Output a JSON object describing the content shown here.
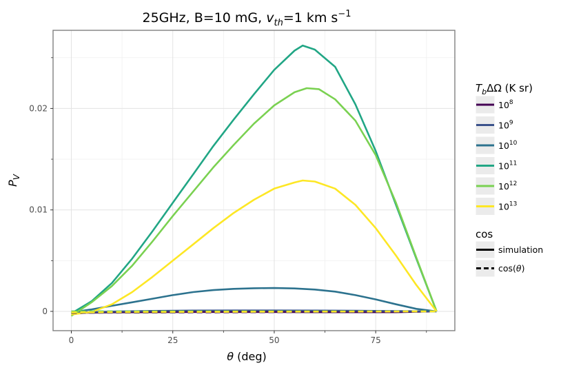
{
  "chart_data": {
    "type": "line",
    "title": "25GHz, B=10 mG, v_th=1 km s^-1",
    "title_parts": {
      "prefix": "25GHz, B=10 mG, ",
      "var": "v",
      "var_sub": "th",
      "mid": "=1 km s",
      "sup": "−1"
    },
    "xlabel": {
      "sym": "θ",
      "rest": " (deg)"
    },
    "ylabel": {
      "sym": "P",
      "sub": "V"
    },
    "xlim": [
      -4.5,
      94.5
    ],
    "ylim": [
      -0.0019,
      0.0277
    ],
    "x_ticks": [
      0,
      25,
      50,
      75
    ],
    "x_tick_labels": [
      "0",
      "25",
      "50",
      "75"
    ],
    "y_ticks": [
      0,
      0.01,
      0.02
    ],
    "y_tick_labels": [
      "0",
      "0.01",
      "0.02"
    ],
    "grid": true,
    "legend_position": "right",
    "color_legend": {
      "title": {
        "sym": "T",
        "sub": "b",
        "rest": "ΔΩ (K sr)"
      },
      "entries": [
        {
          "base": "10",
          "exp": "8",
          "color": "#440154"
        },
        {
          "base": "10",
          "exp": "9",
          "color": "#3b528b"
        },
        {
          "base": "10",
          "exp": "10",
          "color": "#2c728e"
        },
        {
          "base": "10",
          "exp": "11",
          "color": "#21a685"
        },
        {
          "base": "10",
          "exp": "12",
          "color": "#7ad151"
        },
        {
          "base": "10",
          "exp": "13",
          "color": "#fde725"
        }
      ]
    },
    "linetype_legend": {
      "title": "cos",
      "entries": [
        {
          "label": "simulation",
          "dash": "solid"
        },
        {
          "label_prefix": "cos(",
          "label_sym": "θ",
          "label_suffix": ")",
          "dash": "dashed"
        }
      ]
    },
    "series": [
      {
        "group": "1e8",
        "color": "#440154",
        "linetype": "solid",
        "x": [
          0,
          10,
          20,
          30,
          40,
          50,
          60,
          70,
          80,
          90
        ],
        "y": [
          -0.00015,
          -0.0001,
          -8e-05,
          -7e-05,
          -7e-05,
          -7e-05,
          -8e-05,
          -8e-05,
          -8e-05,
          0.0
        ]
      },
      {
        "group": "1e8",
        "color": "#440154",
        "linetype": "dashed",
        "x": [
          0,
          15,
          30,
          45,
          60,
          75,
          90
        ],
        "y": [
          -0.00015,
          -0.00012,
          -0.0001,
          -8e-05,
          -6e-05,
          -4e-05,
          0.0
        ]
      },
      {
        "group": "1e9",
        "color": "#3b528b",
        "linetype": "solid",
        "x": [
          0,
          10,
          20,
          30,
          40,
          50,
          60,
          70,
          80,
          90
        ],
        "y": [
          -0.00012,
          -2e-05,
          5e-05,
          8e-05,
          9e-05,
          9e-05,
          8e-05,
          6e-05,
          3e-05,
          0.0
        ]
      },
      {
        "group": "1e9",
        "color": "#3b528b",
        "linetype": "dashed",
        "x": [
          0,
          15,
          30,
          45,
          60,
          75,
          90
        ],
        "y": [
          -0.00012,
          -9e-05,
          -6e-05,
          -4e-05,
          -3e-05,
          -2e-05,
          0.0
        ]
      },
      {
        "group": "1e10",
        "color": "#2c728e",
        "linetype": "solid",
        "x": [
          0,
          5,
          10,
          15,
          20,
          25,
          30,
          35,
          40,
          45,
          50,
          55,
          60,
          65,
          70,
          75,
          80,
          85,
          90
        ],
        "y": [
          -0.0001,
          0.0002,
          0.00055,
          0.0009,
          0.00125,
          0.0016,
          0.0019,
          0.0021,
          0.00222,
          0.00228,
          0.0023,
          0.00226,
          0.00215,
          0.00195,
          0.0016,
          0.00118,
          0.0007,
          0.00025,
          0.0
        ]
      },
      {
        "group": "1e10",
        "color": "#2c728e",
        "linetype": "dashed",
        "x": [
          0,
          15,
          30,
          45,
          60,
          75,
          90
        ],
        "y": [
          -0.0001,
          -8e-05,
          -5e-05,
          -3e-05,
          -2e-05,
          -1e-05,
          0.0
        ]
      },
      {
        "group": "1e11",
        "color": "#21a685",
        "linetype": "solid",
        "x": [
          0,
          5,
          10,
          15,
          20,
          25,
          30,
          35,
          40,
          45,
          50,
          55,
          57,
          60,
          65,
          70,
          75,
          80,
          85,
          90
        ],
        "y": [
          -0.0002,
          0.001,
          0.0028,
          0.0052,
          0.0079,
          0.0107,
          0.0135,
          0.0163,
          0.0189,
          0.0214,
          0.0238,
          0.0257,
          0.0262,
          0.0258,
          0.0241,
          0.0204,
          0.0158,
          0.0105,
          0.0052,
          0.0
        ]
      },
      {
        "group": "1e11",
        "color": "#21a685",
        "linetype": "dashed",
        "x": [
          0,
          30,
          60,
          90
        ],
        "y": [
          0.0,
          0.0,
          0.0,
          0.0
        ]
      },
      {
        "group": "1e12",
        "color": "#7ad151",
        "linetype": "solid",
        "x": [
          0,
          5,
          10,
          15,
          20,
          25,
          30,
          35,
          40,
          45,
          50,
          55,
          58,
          61,
          65,
          70,
          75,
          80,
          85,
          90
        ],
        "y": [
          -0.00045,
          0.0009,
          0.0025,
          0.0045,
          0.0069,
          0.0094,
          0.0118,
          0.0142,
          0.0164,
          0.0185,
          0.0203,
          0.0216,
          0.022,
          0.0219,
          0.0209,
          0.0188,
          0.0154,
          0.0107,
          0.0053,
          0.0
        ]
      },
      {
        "group": "1e12",
        "color": "#7ad151",
        "linetype": "dashed",
        "x": [
          0,
          30,
          60,
          90
        ],
        "y": [
          0.0,
          0.0,
          0.0,
          0.0
        ]
      },
      {
        "group": "1e13",
        "color": "#fde725",
        "linetype": "solid",
        "x": [
          0,
          5,
          10,
          15,
          20,
          25,
          30,
          35,
          40,
          45,
          50,
          55,
          57,
          60,
          65,
          70,
          75,
          80,
          85,
          90
        ],
        "y": [
          -0.0003,
          -5e-05,
          0.0007,
          0.0019,
          0.0034,
          0.005,
          0.0066,
          0.0082,
          0.0097,
          0.011,
          0.0121,
          0.0127,
          0.0129,
          0.0128,
          0.0121,
          0.0105,
          0.0082,
          0.0055,
          0.0026,
          0.0
        ]
      },
      {
        "group": "1e13",
        "color": "#fde725",
        "linetype": "dashed",
        "x": [
          0,
          15,
          30,
          45,
          60,
          75,
          90
        ],
        "y": [
          -0.0001,
          -7e-05,
          -5e-05,
          -3e-05,
          -2e-05,
          -1e-05,
          0.0
        ]
      }
    ]
  }
}
